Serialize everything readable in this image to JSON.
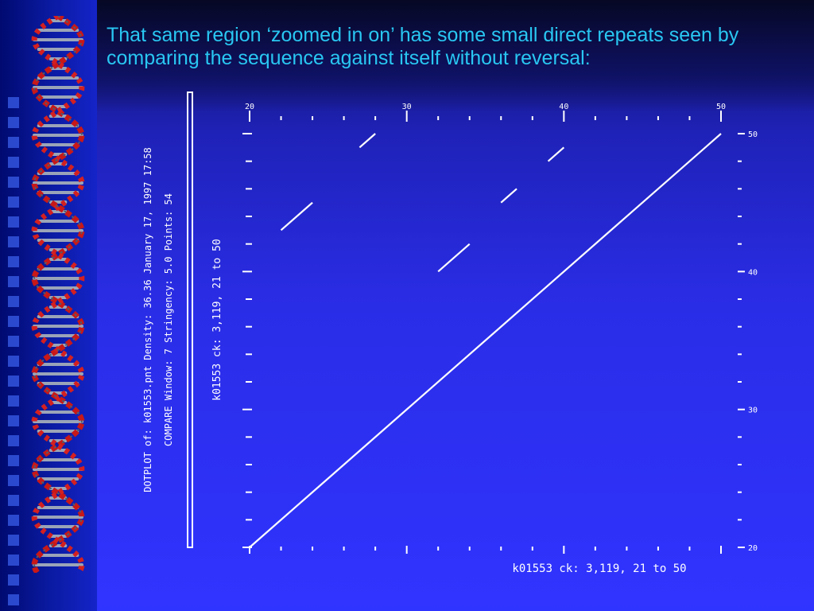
{
  "slide": {
    "title": "That same region ‘zoomed in on’ has some small direct repeats seen by comparing the sequence against itself without reversal:"
  },
  "colors": {
    "title": "#29c7f2",
    "background": "#2a2de6",
    "plot_lines": "#ffffff"
  },
  "dotplot": {
    "header_line1": "DOTPLOT of: k01553.pnt  Density: 36.36  January 17, 1997 17:58",
    "header_line2": "COMPARE  Window: 7  Stringency: 5.0  Points: 54",
    "y_axis_label": "k01553 ck: 3,119, 21 to 50",
    "x_axis_label": "k01553 ck: 3,119, 21  to  50",
    "top_ticks": [
      "20",
      "30",
      "40",
      "50"
    ],
    "right_ticks": [
      "50",
      "40",
      "30",
      "20"
    ]
  },
  "chart_data": {
    "type": "scatter",
    "x_range": [
      20,
      51
    ],
    "y_range": [
      20,
      51
    ],
    "main_diagonal": [
      [
        20,
        20
      ],
      [
        50,
        50
      ]
    ],
    "repeat_segments": [
      [
        [
          22,
          43
        ],
        [
          24,
          45
        ]
      ],
      [
        [
          27,
          49
        ],
        [
          28,
          50
        ]
      ],
      [
        [
          32,
          40
        ],
        [
          34,
          42
        ]
      ],
      [
        [
          36,
          45
        ],
        [
          37,
          46
        ]
      ],
      [
        [
          39,
          48
        ],
        [
          40,
          49
        ]
      ]
    ]
  }
}
